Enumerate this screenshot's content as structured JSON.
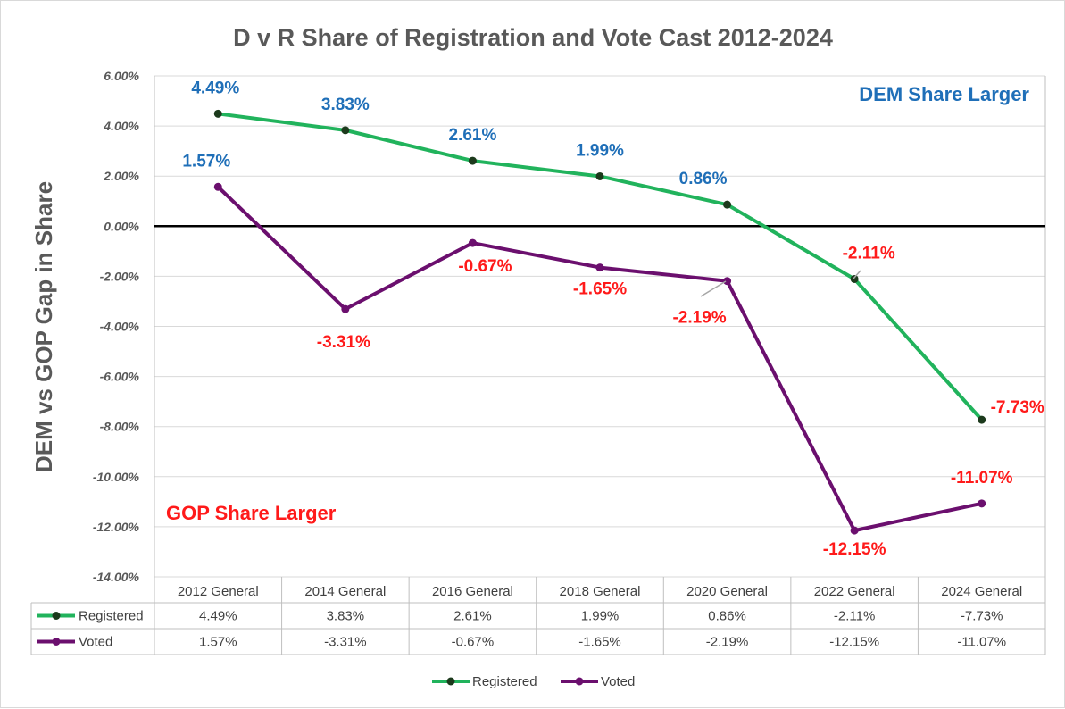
{
  "colors": {
    "registered": "#21b35c",
    "voted": "#6b0f6e",
    "positive_label": "#1f6fb8",
    "negative_label": "#ff1a1a",
    "marker": "#1c3a1c"
  },
  "chart_data": {
    "type": "line",
    "title": "D v R Share of Registration and Vote Cast 2012-2024",
    "ylabel": "DEM vs GOP Gap in Share",
    "xlabel": "",
    "ylim": [
      -14,
      6
    ],
    "y_ticks": [
      6,
      4,
      2,
      0,
      -2,
      -4,
      -6,
      -8,
      -10,
      -12,
      -14
    ],
    "y_tick_labels": [
      "6.00%",
      "4.00%",
      "2.00%",
      "0.00%",
      "-2.00%",
      "-4.00%",
      "-6.00%",
      "-8.00%",
      "-10.00%",
      "-12.00%",
      "-14.00%"
    ],
    "grid": true,
    "zero_line": true,
    "categories": [
      "2012 General",
      "2014 General",
      "2016 General",
      "2018 General",
      "2020 General",
      "2022 General",
      "2024 General"
    ],
    "series": [
      {
        "name": "Registered",
        "values": [
          4.49,
          3.83,
          2.61,
          1.99,
          0.86,
          -2.11,
          -7.73
        ],
        "labels": [
          "4.49%",
          "3.83%",
          "2.61%",
          "1.99%",
          "0.86%",
          "-2.11%",
          "-7.73%"
        ]
      },
      {
        "name": "Voted",
        "values": [
          1.57,
          -3.31,
          -0.67,
          -1.65,
          -2.19,
          -12.15,
          -11.07
        ],
        "labels": [
          "1.57%",
          "-3.31%",
          "-0.67%",
          "-1.65%",
          "-2.19%",
          "-12.15%",
          "-11.07%"
        ]
      }
    ],
    "annotations": [
      "DEM Share Larger",
      "GOP Share Larger"
    ],
    "legend": "bottom"
  }
}
